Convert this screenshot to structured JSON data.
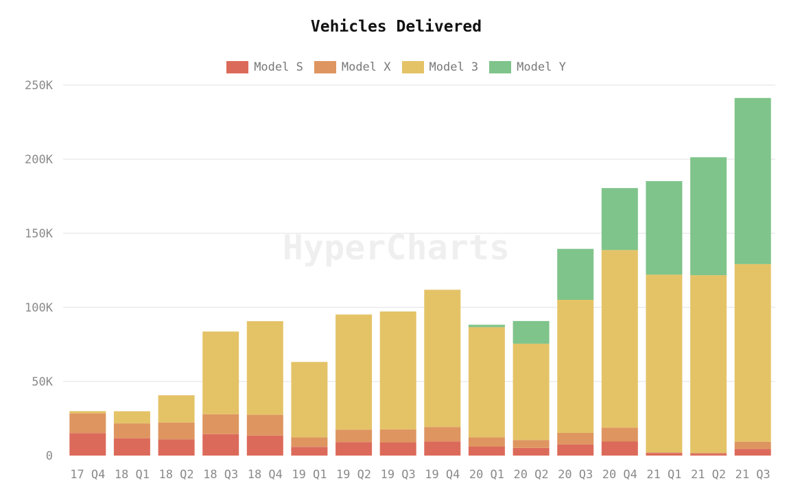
{
  "chart_data": {
    "type": "bar",
    "stacked": true,
    "title": "Vehicles Delivered",
    "watermark": "HyperCharts",
    "xlabel": "",
    "ylabel": "",
    "ylim": [
      0,
      250000
    ],
    "yticks": [
      0,
      50000,
      100000,
      150000,
      200000,
      250000
    ],
    "ytick_labels": [
      "0",
      "50K",
      "100K",
      "150K",
      "200K",
      "250K"
    ],
    "grid": true,
    "legend_position": "top-center",
    "categories": [
      "17 Q4",
      "18 Q1",
      "18 Q2",
      "18 Q3",
      "18 Q4",
      "19 Q1",
      "19 Q2",
      "19 Q3",
      "19 Q4",
      "20 Q1",
      "20 Q2",
      "20 Q3",
      "20 Q4",
      "21 Q1",
      "21 Q2",
      "21 Q3"
    ],
    "series": [
      {
        "name": "Model S",
        "color": "#dc6a5a",
        "values": [
          15200,
          11700,
          10900,
          14500,
          13500,
          5900,
          9100,
          8800,
          9600,
          6000,
          5200,
          7500,
          9500,
          1700,
          1300,
          4500
        ]
      },
      {
        "name": "Model X",
        "color": "#de9560",
        "values": [
          13300,
          10000,
          11400,
          13400,
          14000,
          6400,
          8400,
          8800,
          9700,
          6300,
          5300,
          7800,
          9400,
          500,
          600,
          4800
        ]
      },
      {
        "name": "Model 3",
        "color": "#e4c367",
        "values": [
          1500,
          8200,
          18400,
          55800,
          63200,
          50900,
          77700,
          79600,
          92600,
          74400,
          65000,
          89800,
          119800,
          119900,
          119800,
          119900
        ]
      },
      {
        "name": "Model Y",
        "color": "#7fc48a",
        "values": [
          0,
          0,
          0,
          0,
          0,
          0,
          0,
          0,
          0,
          1600,
          15300,
          34400,
          41800,
          63100,
          79600,
          112100
        ]
      }
    ]
  }
}
